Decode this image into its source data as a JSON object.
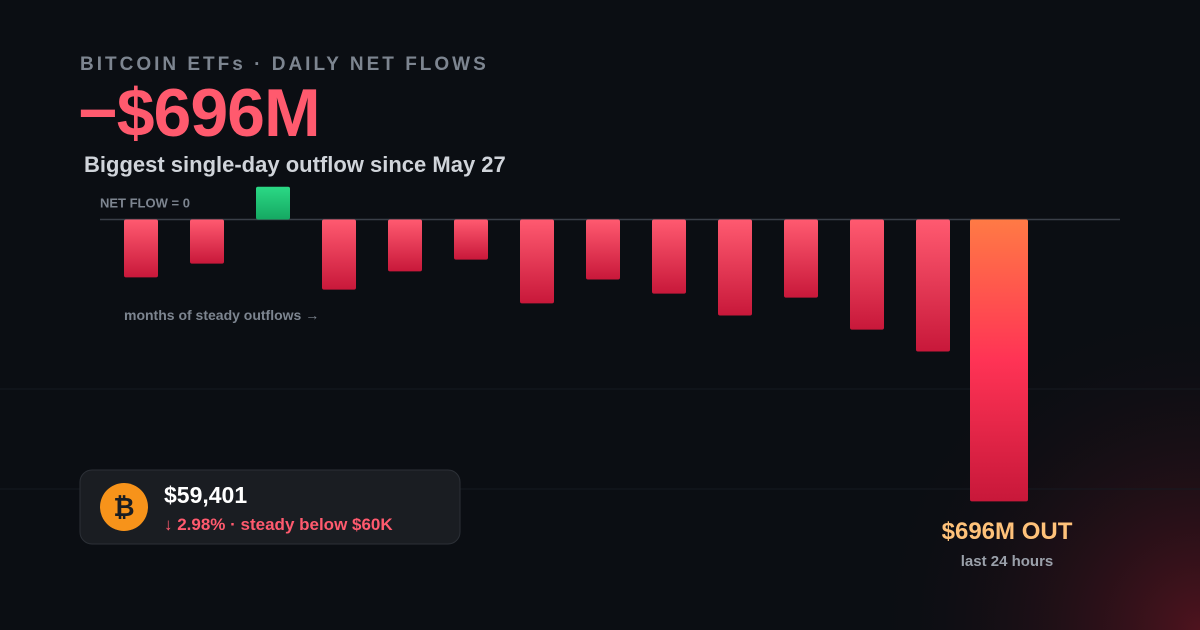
{
  "chart_data": {
    "type": "bar",
    "kicker": "BITCOIN ETFs · DAILY NET FLOWS",
    "headline": "−$696M",
    "subtitle": "Biggest single-day outflow since May 27",
    "annotation": "months of steady outflows →",
    "values": [
      -143,
      -109,
      81,
      -173,
      -128,
      -99,
      -207,
      -148,
      -183,
      -237,
      -193,
      -272,
      -326,
      -696
    ],
    "highlight_label": "$696M OUT",
    "highlight_sublabel": "last 24 hours",
    "ylim": [
      -700,
      100
    ],
    "yticks": [
      {
        "value": 0,
        "label": "NET FLOW = 0"
      }
    ],
    "colors": {
      "inflow": "#22c97a",
      "outflow": "#ff4d6a",
      "highlight": "#ff7a45"
    }
  },
  "price_card": {
    "icon": "₿",
    "price": "$59,401",
    "change": "↓ 2.98% · steady below $60K"
  }
}
